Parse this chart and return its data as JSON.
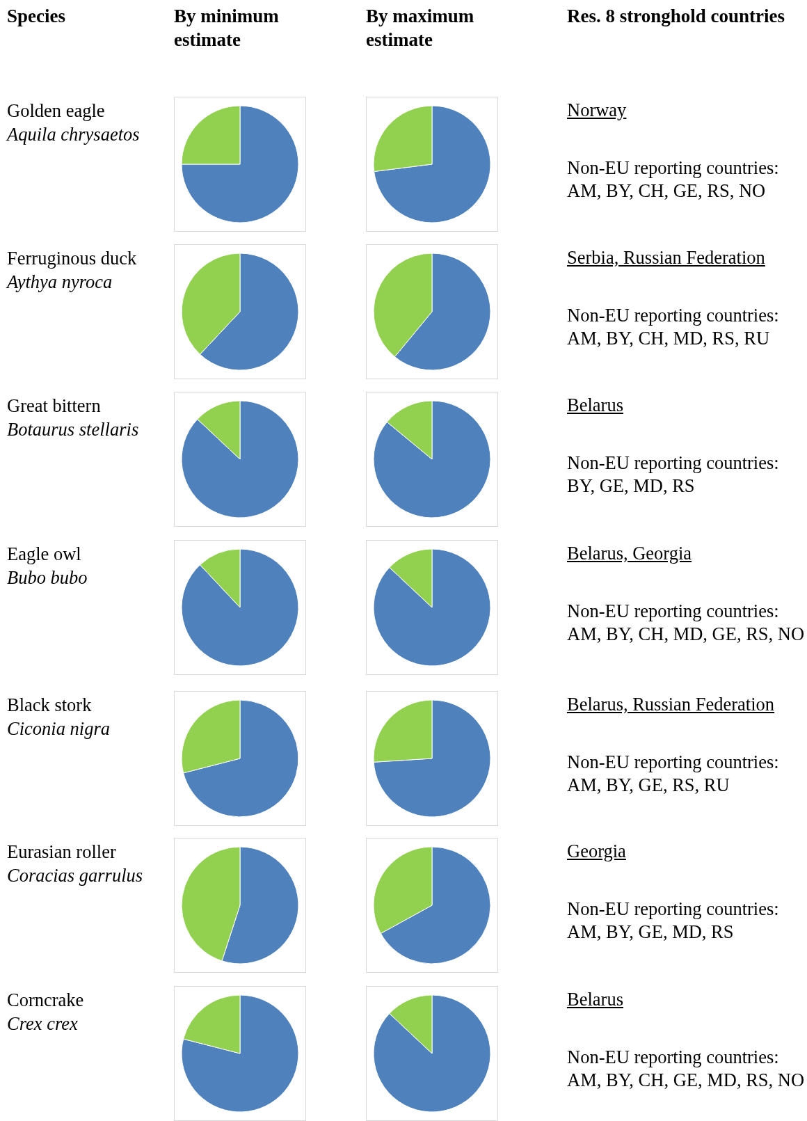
{
  "chart_data": [
    {
      "type": "other",
      "annotations": [
        "Species",
        "By minimum estimate",
        "By maximum estimate",
        "Res. 8 stronghold countries"
      ]
    },
    {
      "type": "other",
      "title": "Golden eagle",
      "subtitle": "Aquila chrysaetos"
    },
    {
      "type": "pie",
      "categories": [
        null,
        null
      ],
      "values": [
        75,
        25
      ],
      "colors": [
        "#4f81bd",
        "#92d050"
      ]
    },
    {
      "type": "pie",
      "categories": [
        null,
        null
      ],
      "values": [
        73,
        27
      ],
      "colors": [
        "#4f81bd",
        "#92d050"
      ]
    },
    {
      "type": "other",
      "annotations": [
        "Norway",
        "Non-EU reporting countries: AM, BY, CH, GE, RS, NO"
      ]
    },
    {
      "type": "other",
      "title": "Ferruginous duck",
      "subtitle": "Aythya nyroca"
    },
    {
      "type": "pie",
      "categories": [
        null,
        null
      ],
      "values": [
        62,
        38
      ],
      "colors": [
        "#4f81bd",
        "#92d050"
      ]
    },
    {
      "type": "pie",
      "categories": [
        null,
        null
      ],
      "values": [
        61,
        39
      ],
      "colors": [
        "#4f81bd",
        "#92d050"
      ]
    },
    {
      "type": "other",
      "annotations": [
        "Serbia, Russian Federation",
        "Non-EU reporting countries: AM, BY, CH, MD, RS, RU"
      ]
    },
    {
      "type": "other",
      "title": "Great bittern",
      "subtitle": "Botaurus stellaris"
    },
    {
      "type": "pie",
      "categories": [
        null,
        null
      ],
      "values": [
        87,
        13
      ],
      "colors": [
        "#4f81bd",
        "#92d050"
      ]
    },
    {
      "type": "pie",
      "categories": [
        null,
        null
      ],
      "values": [
        86,
        14
      ],
      "colors": [
        "#4f81bd",
        "#92d050"
      ]
    },
    {
      "type": "other",
      "annotations": [
        "Belarus",
        "Non-EU reporting countries: BY, GE, MD, RS"
      ]
    },
    {
      "type": "other",
      "title": "Eagle owl",
      "subtitle": "Bubo bubo"
    },
    {
      "type": "pie",
      "categories": [
        null,
        null
      ],
      "values": [
        88,
        12
      ],
      "colors": [
        "#4f81bd",
        "#92d050"
      ]
    },
    {
      "type": "pie",
      "categories": [
        null,
        null
      ],
      "values": [
        87,
        13
      ],
      "colors": [
        "#4f81bd",
        "#92d050"
      ]
    },
    {
      "type": "other",
      "annotations": [
        "Belarus, Georgia",
        "Non-EU reporting countries: AM, BY, CH, MD, GE, RS, NO"
      ]
    },
    {
      "type": "other",
      "title": "Black stork",
      "subtitle": "Ciconia nigra"
    },
    {
      "type": "pie",
      "categories": [
        null,
        null
      ],
      "values": [
        71,
        29
      ],
      "colors": [
        "#4f81bd",
        "#92d050"
      ]
    },
    {
      "type": "pie",
      "categories": [
        null,
        null
      ],
      "values": [
        74,
        26
      ],
      "colors": [
        "#4f81bd",
        "#92d050"
      ]
    },
    {
      "type": "other",
      "annotations": [
        "Belarus, Russian Federation",
        "Non-EU reporting countries: AM, BY, GE, RS, RU"
      ]
    },
    {
      "type": "other",
      "title": "Eurasian roller",
      "subtitle": "Coracias garrulus"
    },
    {
      "type": "pie",
      "categories": [
        null,
        null
      ],
      "values": [
        55,
        45
      ],
      "colors": [
        "#4f81bd",
        "#92d050"
      ]
    },
    {
      "type": "pie",
      "categories": [
        null,
        null
      ],
      "values": [
        67,
        33
      ],
      "colors": [
        "#4f81bd",
        "#92d050"
      ]
    },
    {
      "type": "other",
      "annotations": [
        "Georgia",
        "Non-EU reporting countries: AM, BY, GE, MD, RS"
      ]
    },
    {
      "type": "other",
      "title": "Corncrake",
      "subtitle": "Crex crex"
    },
    {
      "type": "pie",
      "categories": [
        null,
        null
      ],
      "values": [
        79,
        21
      ],
      "colors": [
        "#4f81bd",
        "#92d050"
      ]
    },
    {
      "type": "pie",
      "categories": [
        null,
        null
      ],
      "values": [
        87,
        13
      ],
      "colors": [
        "#4f81bd",
        "#92d050"
      ]
    },
    {
      "type": "other",
      "annotations": [
        "Belarus",
        "Non-EU reporting countries: AM, BY, CH, GE, MD, RS, NO"
      ]
    }
  ]
}
